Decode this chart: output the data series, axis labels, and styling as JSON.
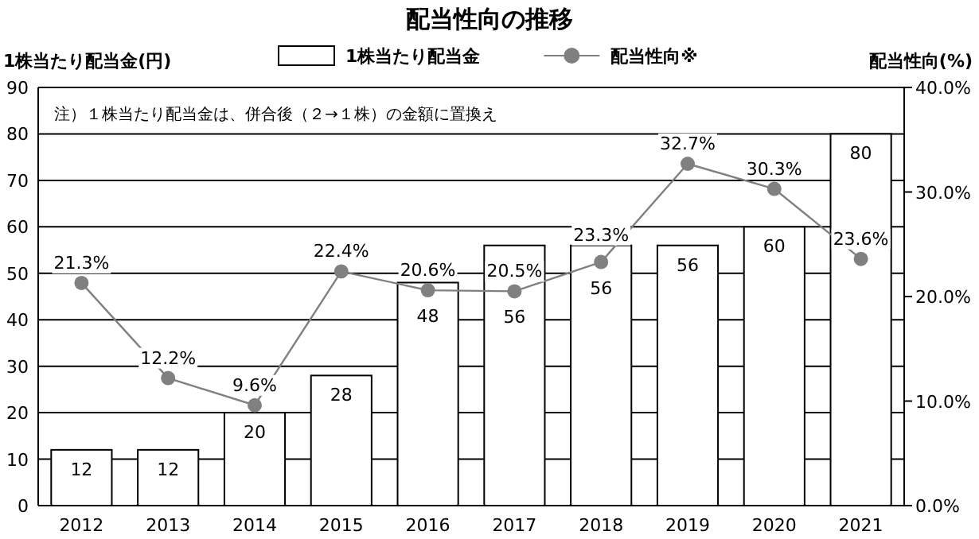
{
  "chart_data": {
    "type": "bar",
    "title": "配当性向の推移",
    "ylabel": "1株当たり配当金(円)",
    "y2label": "配当性向(%)",
    "annotations": [
      "注）１株当たり配当金は、併合後（２→１株）の金額に置換え"
    ],
    "categories": [
      "2012",
      "2013",
      "2014",
      "2015",
      "2016",
      "2017",
      "2018",
      "2019",
      "2020",
      "2021"
    ],
    "series": [
      {
        "name": "1株当たり配当金",
        "color": "#ffffff",
        "values": [
          12,
          12,
          20,
          28,
          48,
          56,
          56,
          56,
          60,
          80
        ]
      },
      {
        "name": "配当性向※",
        "type": "line",
        "axis": "y2",
        "color": "#808080",
        "marker": "circle",
        "values": [
          21.3,
          12.2,
          9.6,
          22.4,
          20.6,
          20.5,
          23.3,
          32.7,
          30.3,
          23.6
        ],
        "value_labels": [
          "21.3%",
          "12.2%",
          "9.6%",
          "22.4%",
          "20.6%",
          "20.5%",
          "23.3%",
          "32.7%",
          "30.3%",
          "23.6%"
        ]
      }
    ],
    "ylim": [
      0,
      90
    ],
    "yticks": [
      0,
      10,
      20,
      30,
      40,
      50,
      60,
      70,
      80,
      90
    ],
    "y2lim": [
      0,
      40
    ],
    "y2ticks": [
      {
        "value": 0,
        "label": "0.0%"
      },
      {
        "value": 10,
        "label": "10.0%"
      },
      {
        "value": 20,
        "label": "20.0%"
      },
      {
        "value": 30,
        "label": "30.0%"
      },
      {
        "value": 40,
        "label": "40.0%"
      }
    ],
    "grid": "y",
    "legend": "top",
    "data_labels": true
  }
}
